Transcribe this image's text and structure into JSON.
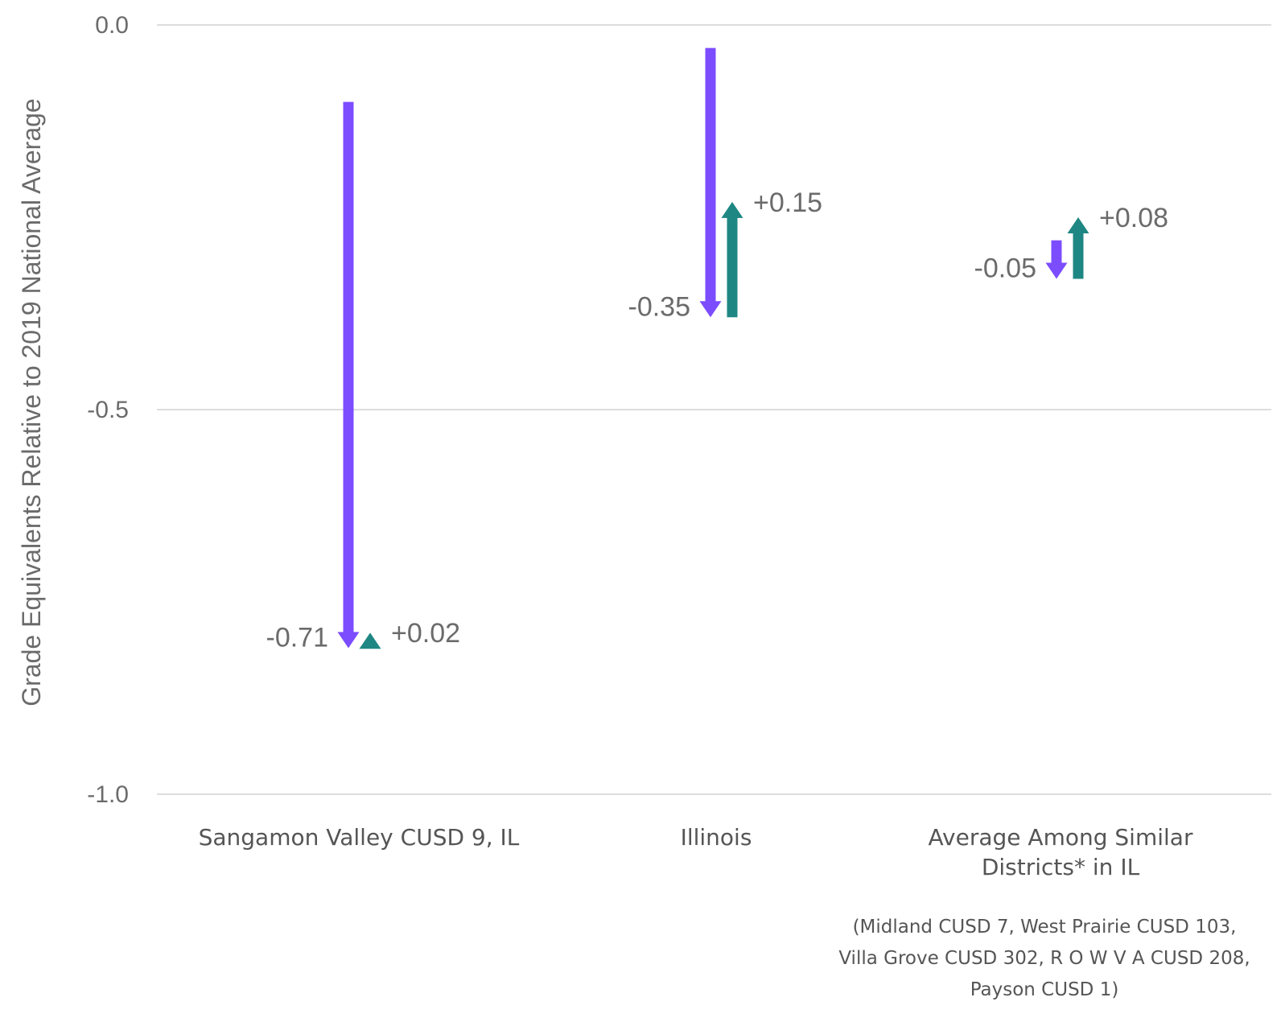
{
  "chart_data": {
    "type": "arrow",
    "ylabel": "Grade Equivalents Relative to 2019 National Average",
    "ylim": [
      -1.0,
      0.0
    ],
    "yticks": [
      {
        "value": 0.0,
        "label": "0.0"
      },
      {
        "value": -0.5,
        "label": "-0.5"
      },
      {
        "value": -1.0,
        "label": "-1.0"
      }
    ],
    "grid": true,
    "colors": {
      "decline": "#7c4dff",
      "recovery": "#1f8783",
      "grid": "#dddddd"
    },
    "categories": [
      {
        "label_lines": [
          "Sangamon Valley CUSD 9, IL"
        ],
        "decline": {
          "start": -0.1,
          "end": -0.81,
          "label": "-0.71"
        },
        "recovery": {
          "start": -0.81,
          "end": -0.79,
          "label": "+0.02"
        }
      },
      {
        "label_lines": [
          "Illinois"
        ],
        "decline": {
          "start": -0.03,
          "end": -0.38,
          "label": "-0.35"
        },
        "recovery": {
          "start": -0.38,
          "end": -0.23,
          "label": "+0.15"
        }
      },
      {
        "label_lines": [
          "Average Among Similar",
          "Districts* in IL"
        ],
        "decline": {
          "start": -0.28,
          "end": -0.33,
          "label": "-0.05"
        },
        "recovery": {
          "start": -0.33,
          "end": -0.25,
          "label": "+0.08"
        }
      }
    ],
    "footnote_lines": [
      "(Midland CUSD 7, West Prairie CUSD 103,",
      "Villa Grove CUSD 302, R O W V A CUSD 208,",
      "Payson CUSD 1)"
    ]
  }
}
